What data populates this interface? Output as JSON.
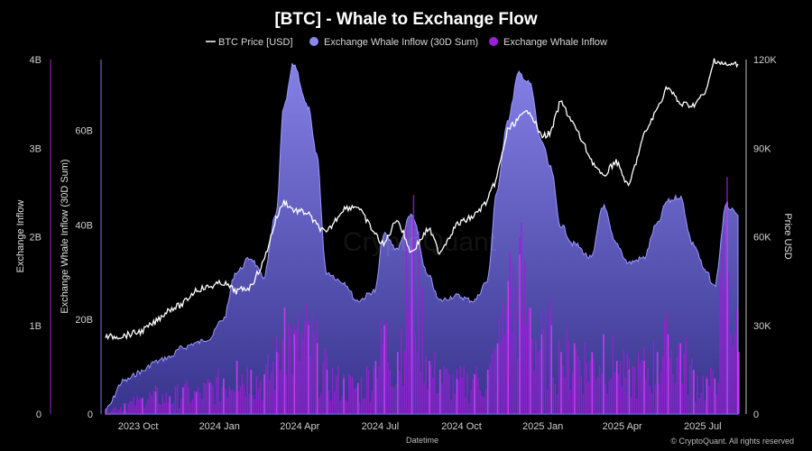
{
  "chart_data": {
    "type": "area",
    "title": "[BTC] - Whale to Exchange Flow",
    "xlabel": "Datetime",
    "x_ticks": [
      "2023 Oct",
      "2024 Jan",
      "2024 Apr",
      "2024 Jul",
      "2024 Oct",
      "2025 Jan",
      "2025 Apr",
      "2025 Jul"
    ],
    "y_axes": {
      "inflow": {
        "label": "Exchange Inflow",
        "ticks": [
          "0",
          "1B",
          "2B",
          "3B",
          "4B"
        ],
        "range": [
          0,
          4000000000
        ]
      },
      "sum30d": {
        "label": "Exchange Whale Inflow (30D Sum)",
        "ticks": [
          "0",
          "20B",
          "40B",
          "60B"
        ],
        "range": [
          0,
          75000000000
        ]
      },
      "price": {
        "label": "Price USD",
        "ticks": [
          "0",
          "30K",
          "60K",
          "90K",
          "120K"
        ],
        "range": [
          0,
          120000
        ]
      }
    },
    "x_range": [
      "2023-08-20",
      "2025-08-10"
    ],
    "legend_position": "top-center",
    "series": [
      {
        "name": "BTC Price [USD]",
        "type": "line",
        "axis": "price",
        "color": "#ffffff",
        "x": [
          "2023-08-25",
          "2023-09-15",
          "2023-10-05",
          "2023-10-20",
          "2023-11-05",
          "2023-11-20",
          "2023-12-05",
          "2023-12-20",
          "2024-01-05",
          "2024-01-20",
          "2024-02-05",
          "2024-02-20",
          "2024-03-05",
          "2024-03-14",
          "2024-03-25",
          "2024-04-10",
          "2024-04-20",
          "2024-05-01",
          "2024-05-20",
          "2024-06-05",
          "2024-06-25",
          "2024-07-05",
          "2024-07-20",
          "2024-08-05",
          "2024-08-25",
          "2024-09-06",
          "2024-09-25",
          "2024-10-15",
          "2024-10-30",
          "2024-11-10",
          "2024-11-22",
          "2024-12-05",
          "2024-12-17",
          "2024-12-30",
          "2025-01-10",
          "2025-01-21",
          "2025-02-05",
          "2025-02-25",
          "2025-03-10",
          "2025-03-25",
          "2025-04-08",
          "2025-04-25",
          "2025-05-10",
          "2025-05-22",
          "2025-06-05",
          "2025-06-20",
          "2025-07-05",
          "2025-07-14",
          "2025-07-28",
          "2025-08-10"
        ],
        "values": [
          26000,
          26500,
          28000,
          31000,
          35500,
          37000,
          42000,
          43000,
          44500,
          41500,
          43000,
          51500,
          66000,
          72000,
          69000,
          68000,
          64000,
          61000,
          69500,
          70500,
          61000,
          57000,
          66500,
          54500,
          63000,
          54500,
          64000,
          67000,
          72000,
          80000,
          96000,
          100000,
          103000,
          94000,
          95000,
          106000,
          98000,
          86000,
          80000,
          86000,
          76500,
          94000,
          103000,
          111000,
          105000,
          104500,
          109000,
          120000,
          118000,
          118500
        ]
      },
      {
        "name": "Exchange Whale Inflow (30D Sum)",
        "type": "area",
        "axis": "sum30d",
        "color": "#7b78ec",
        "x": [
          "2023-08-25",
          "2023-09-15",
          "2023-10-05",
          "2023-10-20",
          "2023-11-05",
          "2023-11-20",
          "2023-12-05",
          "2023-12-20",
          "2024-01-05",
          "2024-01-20",
          "2024-02-05",
          "2024-02-20",
          "2024-03-05",
          "2024-03-14",
          "2024-03-25",
          "2024-04-10",
          "2024-04-20",
          "2024-05-01",
          "2024-05-20",
          "2024-06-05",
          "2024-06-25",
          "2024-07-05",
          "2024-07-20",
          "2024-08-05",
          "2024-08-25",
          "2024-09-06",
          "2024-09-25",
          "2024-10-15",
          "2024-10-30",
          "2024-11-10",
          "2024-11-22",
          "2024-12-05",
          "2024-12-17",
          "2024-12-30",
          "2025-01-10",
          "2025-01-21",
          "2025-02-05",
          "2025-02-25",
          "2025-03-10",
          "2025-03-25",
          "2025-04-08",
          "2025-04-25",
          "2025-05-10",
          "2025-05-22",
          "2025-06-05",
          "2025-06-20",
          "2025-07-05",
          "2025-07-14",
          "2025-07-28",
          "2025-08-10"
        ],
        "values": [
          1000000000,
          7000000000,
          9000000000,
          11000000000,
          12000000000,
          14000000000,
          15000000000,
          16000000000,
          20000000000,
          30000000000,
          33000000000,
          29000000000,
          42000000000,
          65000000000,
          74000000000,
          65000000000,
          55000000000,
          30000000000,
          28000000000,
          24000000000,
          26000000000,
          38000000000,
          35000000000,
          42000000000,
          29000000000,
          24000000000,
          25000000000,
          24000000000,
          28000000000,
          47000000000,
          62000000000,
          72000000000,
          70000000000,
          58000000000,
          52000000000,
          40000000000,
          36000000000,
          33000000000,
          44000000000,
          36000000000,
          32000000000,
          33000000000,
          40000000000,
          45000000000,
          46000000000,
          36000000000,
          30000000000,
          27000000000,
          44000000000,
          42000000000
        ]
      },
      {
        "name": "Exchange Whale Inflow",
        "type": "bar",
        "axis": "inflow",
        "color": "#9b1fd6",
        "x": [
          "2023-08-25",
          "2023-09-15",
          "2023-10-05",
          "2023-10-20",
          "2023-11-05",
          "2023-11-20",
          "2023-12-05",
          "2023-12-20",
          "2024-01-05",
          "2024-01-20",
          "2024-02-05",
          "2024-02-20",
          "2024-03-05",
          "2024-03-14",
          "2024-03-25",
          "2024-04-10",
          "2024-04-20",
          "2024-05-01",
          "2024-05-20",
          "2024-06-05",
          "2024-06-25",
          "2024-07-05",
          "2024-07-20",
          "2024-08-05",
          "2024-08-25",
          "2024-09-06",
          "2024-09-25",
          "2024-10-15",
          "2024-10-30",
          "2024-11-10",
          "2024-11-22",
          "2024-12-05",
          "2024-12-17",
          "2024-12-30",
          "2025-01-10",
          "2025-01-21",
          "2025-02-05",
          "2025-02-25",
          "2025-03-10",
          "2025-03-25",
          "2025-04-08",
          "2025-04-25",
          "2025-05-10",
          "2025-05-22",
          "2025-06-05",
          "2025-06-20",
          "2025-07-05",
          "2025-07-14",
          "2025-07-28",
          "2025-08-10"
        ],
        "values": [
          50000000,
          120000000,
          180000000,
          250000000,
          200000000,
          300000000,
          250000000,
          350000000,
          400000000,
          600000000,
          500000000,
          450000000,
          700000000,
          1200000000,
          900000000,
          1000000000,
          800000000,
          500000000,
          400000000,
          350000000,
          600000000,
          1000000000,
          700000000,
          2200000000,
          600000000,
          500000000,
          400000000,
          450000000,
          500000000,
          800000000,
          1500000000,
          1800000000,
          1200000000,
          900000000,
          1000000000,
          700000000,
          800000000,
          700000000,
          900000000,
          600000000,
          500000000,
          600000000,
          700000000,
          900000000,
          800000000,
          500000000,
          400000000,
          400000000,
          2400000000,
          700000000
        ]
      }
    ]
  },
  "watermark": "CryptoQuant",
  "footer_credit": "© CryptoQuant. All rights reserved"
}
